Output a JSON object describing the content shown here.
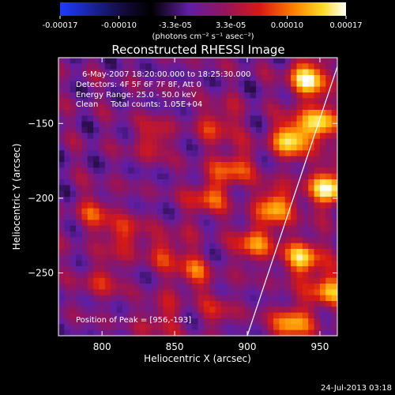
{
  "chart_data": {
    "type": "heatmap",
    "title": "Reconstructed RHESSI Image",
    "xlabel": "Heliocentric X (arcsec)",
    "ylabel": "Heliocentric Y (arcsec)",
    "xlim": [
      770,
      962
    ],
    "ylim": [
      -292,
      -106
    ],
    "xticks": [
      800,
      850,
      900,
      950
    ],
    "yticks": [
      -150,
      -200,
      -250
    ],
    "colorbar": {
      "ticks": [
        -0.00017,
        -0.0001,
        -3.3e-05,
        3.3e-05,
        0.0001,
        0.00017
      ],
      "tick_labels": [
        "-0.00017",
        "-0.00010",
        "-3.3e-05",
        "3.3e-05",
        "0.00010",
        "0.00017"
      ],
      "range": [
        -0.00017,
        0.00017
      ],
      "unit_label": "(photons cm⁻² s⁻¹ asec⁻²)"
    },
    "annotations": {
      "time_range": "6-May-2007 18:20:00.000 to 18:25:30.000",
      "detectors": "Detectors: 4F 5F 6F 7F 8F, Att 0",
      "energy": "Energy Range: 25.0 - 50.0 keV",
      "method": "Clean",
      "counts": "Total counts: 1.05E+04",
      "peak": "Position of Peak = [956,-193]"
    },
    "limb_line": {
      "x": [
        900,
        962
      ],
      "y": [
        -292,
        -112
      ]
    },
    "hot_spots": [
      {
        "x": 956,
        "y": -193,
        "intensity": 0.00017
      },
      {
        "x": 942,
        "y": -120,
        "intensity": 0.00016
      },
      {
        "x": 930,
        "y": -160,
        "intensity": 0.00015
      },
      {
        "x": 950,
        "y": -150,
        "intensity": 0.00014
      },
      {
        "x": 920,
        "y": -205,
        "intensity": 0.00013
      },
      {
        "x": 938,
        "y": -240,
        "intensity": 0.00014
      },
      {
        "x": 955,
        "y": -262,
        "intensity": 0.00012
      },
      {
        "x": 930,
        "y": -285,
        "intensity": 0.00013
      },
      {
        "x": 905,
        "y": -230,
        "intensity": 0.00011
      },
      {
        "x": 890,
        "y": -180,
        "intensity": 0.0001
      },
      {
        "x": 872,
        "y": -200,
        "intensity": 9e-05
      },
      {
        "x": 880,
        "y": -150,
        "intensity": 8e-05
      },
      {
        "x": 862,
        "y": -250,
        "intensity": 8e-05
      },
      {
        "x": 845,
        "y": -235,
        "intensity": 7e-05
      },
      {
        "x": 835,
        "y": -160,
        "intensity": 7e-05
      },
      {
        "x": 815,
        "y": -225,
        "intensity": 8e-05
      },
      {
        "x": 795,
        "y": -210,
        "intensity": 7e-05
      },
      {
        "x": 800,
        "y": -255,
        "intensity": 6e-05
      },
      {
        "x": 840,
        "y": -280,
        "intensity": 6e-05
      },
      {
        "x": 880,
        "y": -275,
        "intensity": 5e-05
      }
    ]
  },
  "footer_timestamp": "24-Jul-2013 03:18"
}
